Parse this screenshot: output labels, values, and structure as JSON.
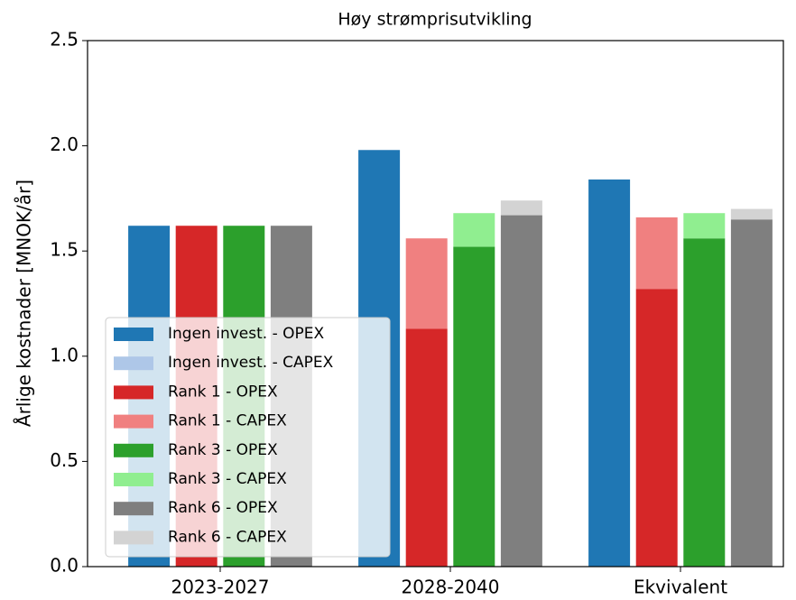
{
  "chart_data": {
    "type": "bar",
    "title": "Høy strømprisutvikling",
    "y_label": "Årlige kostnader [MNOK/år]",
    "categories": [
      "2023-2027",
      "2028-2040",
      "Ekvivalent"
    ],
    "series": [
      {
        "name": "Ingen invest. - OPEX",
        "color": "#1f77b4",
        "values": [
          1.62,
          1.98,
          1.84
        ]
      },
      {
        "name": "Ingen invest. - CAPEX",
        "color": "#aec7e8",
        "values": [
          0,
          0,
          0
        ]
      },
      {
        "name": "Rank 1 - OPEX",
        "color": "#d62728",
        "values": [
          1.62,
          1.13,
          1.32
        ]
      },
      {
        "name": "Rank 1 - CAPEX",
        "color": "#f08080",
        "values": [
          0,
          0.43,
          0.34
        ]
      },
      {
        "name": "Rank 3 - OPEX",
        "color": "#2ca02c",
        "values": [
          1.62,
          1.52,
          1.56
        ]
      },
      {
        "name": "Rank 3 - CAPEX",
        "color": "#90ee90",
        "values": [
          0,
          0.16,
          0.12
        ]
      },
      {
        "name": "Rank 6 - OPEX",
        "color": "#7f7f7f",
        "values": [
          1.62,
          1.67,
          1.65
        ]
      },
      {
        "name": "Rank 6 - CAPEX",
        "color": "#d3d3d3",
        "values": [
          0,
          0.07,
          0.05
        ]
      }
    ],
    "ylim": [
      0,
      2.5
    ],
    "yticks": [
      {
        "value": 0,
        "label": "0.0"
      },
      0.5,
      {
        "value": 1,
        "label": "1.0"
      },
      1.5,
      {
        "value": 2,
        "label": "2.0"
      },
      2.5
    ],
    "legend": "lower left"
  }
}
